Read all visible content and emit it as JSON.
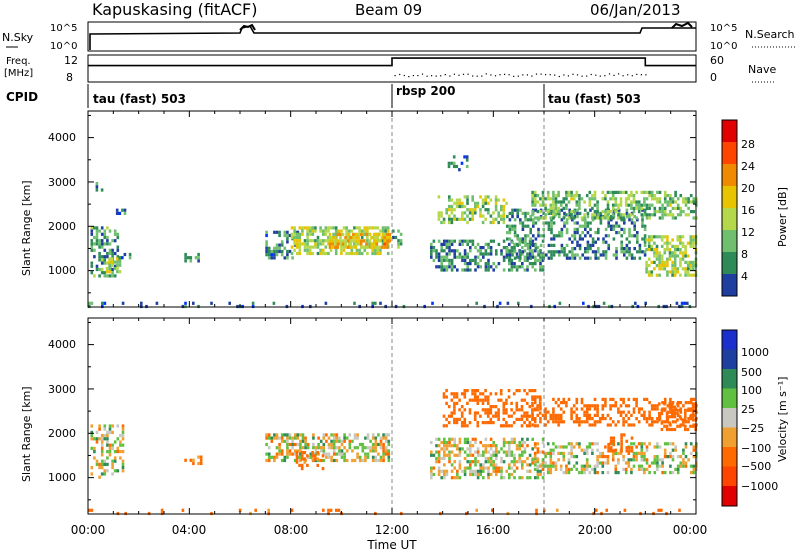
{
  "header": {
    "station": "Kapuskasing (fitACF)",
    "beam": "Beam 09",
    "date": "06/Jan/2013"
  },
  "strip": {
    "nsky_label": "N.Sky",
    "nsky_ticks": [
      "10^5",
      "10^0"
    ],
    "nsearch_label": "N.Search",
    "nsearch_ticks": [
      "10^5",
      "10^0"
    ],
    "freq_label_1": "Freq.",
    "freq_label_2": "[MHz]",
    "freq_ticks": [
      "12",
      "8"
    ],
    "nave_label": "Nave",
    "nave_ticks": [
      "60",
      "0"
    ],
    "cpid_label": "CPID"
  },
  "cpid_segments": [
    {
      "label": "tau (fast) 503",
      "start_h": 0
    },
    {
      "label": "rbsp 200",
      "start_h": 12
    },
    {
      "label": "tau (fast) 503",
      "start_h": 18
    }
  ],
  "x_axis": {
    "label": "Time UT",
    "ticks": [
      "00:00",
      "04:00",
      "08:00",
      "12:00",
      "16:00",
      "20:00",
      "00:00"
    ]
  },
  "power_panel": {
    "ylabel": "Slant Range [km]",
    "yticks": [
      "4000",
      "3000",
      "2000",
      "1000"
    ],
    "cbar_label": "Power [dB]",
    "cbar_ticks": [
      "28",
      "24",
      "20",
      "16",
      "12",
      "8",
      "4"
    ]
  },
  "velocity_panel": {
    "ylabel": "Slant Range [km]",
    "yticks": [
      "4000",
      "3000",
      "2000",
      "1000"
    ],
    "cbar_label": "Velocity [m s⁻¹]",
    "cbar_ticks": [
      "1000",
      "500",
      "100",
      "25",
      "−25",
      "−100",
      "−500",
      "−1000"
    ]
  },
  "chart_data": {
    "type": "heatmap",
    "x_range_hours": [
      0,
      24
    ],
    "y_range_km": [
      180,
      4600
    ],
    "power_colorscale": [
      "#0033ff",
      "#1f3fa0",
      "#2e8b57",
      "#6fbf6f",
      "#b5d84a",
      "#e8c400",
      "#f08a00",
      "#ff4500",
      "#e00000"
    ],
    "power_db_range": [
      0,
      32
    ],
    "velocity_colorscale": [
      "#e00000",
      "#ff6a00",
      "#f0a030",
      "#c8c8c0",
      "#c8c8c0",
      "#60c040",
      "#2e8b57",
      "#1f3fa0",
      "#1a2fcc"
    ],
    "velocity_range": [
      -1000,
      1000
    ],
    "freq_mhz": [
      {
        "t0": 0,
        "t1": 12,
        "value": 10.5
      },
      {
        "t0": 12,
        "t1": 22,
        "value": 11.8
      },
      {
        "t0": 22,
        "t1": 24,
        "value": 10.5
      }
    ],
    "power_echo_regions": [
      {
        "t0": 0.1,
        "t1": 1.2,
        "r0": 900,
        "r1": 2000,
        "db": 10,
        "density": 0.55
      },
      {
        "t0": 0.7,
        "t1": 1.3,
        "r0": 1000,
        "r1": 1300,
        "db": 16,
        "density": 0.7
      },
      {
        "t0": 1.2,
        "t1": 1.7,
        "r0": 1300,
        "r1": 1400,
        "db": 8,
        "density": 0.6
      },
      {
        "t0": 1.1,
        "t1": 1.5,
        "r0": 2200,
        "r1": 2400,
        "db": 8,
        "density": 0.4
      },
      {
        "t0": 0.3,
        "t1": 0.7,
        "r0": 2800,
        "r1": 3000,
        "db": 8,
        "density": 0.4
      },
      {
        "t0": 3.8,
        "t1": 4.4,
        "r0": 1200,
        "r1": 1400,
        "db": 10,
        "density": 0.55
      },
      {
        "t0": 7.0,
        "t1": 8.3,
        "r0": 1300,
        "r1": 1900,
        "db": 8,
        "density": 0.45
      },
      {
        "t0": 8.0,
        "t1": 11.9,
        "r0": 1400,
        "r1": 2000,
        "db": 15,
        "density": 0.6
      },
      {
        "t0": 9.5,
        "t1": 11.9,
        "r0": 1550,
        "r1": 1850,
        "db": 20,
        "density": 0.7
      },
      {
        "t0": 12.0,
        "t1": 12.4,
        "r0": 1500,
        "r1": 2000,
        "db": 10,
        "density": 0.5
      },
      {
        "t0": 13.5,
        "t1": 18.0,
        "r0": 1000,
        "r1": 1700,
        "db": 9,
        "density": 0.5
      },
      {
        "t0": 13.8,
        "t1": 16.5,
        "r0": 2100,
        "r1": 2700,
        "db": 14,
        "density": 0.5
      },
      {
        "t0": 16.5,
        "t1": 22.0,
        "r0": 1300,
        "r1": 2400,
        "db": 9,
        "density": 0.45
      },
      {
        "t0": 17.5,
        "t1": 24.0,
        "r0": 2200,
        "r1": 2800,
        "db": 13,
        "density": 0.5
      },
      {
        "t0": 22.0,
        "t1": 24.0,
        "r0": 900,
        "r1": 1800,
        "db": 15,
        "density": 0.6
      },
      {
        "t0": 14.2,
        "t1": 15.0,
        "r0": 3300,
        "r1": 3600,
        "db": 8,
        "density": 0.35
      },
      {
        "t0": 0.0,
        "t1": 24.0,
        "r0": 200,
        "r1": 300,
        "db": 6,
        "density": 0.12
      }
    ],
    "velocity_echo_regions": [
      {
        "t0": 0.1,
        "t1": 1.4,
        "r0": 1000,
        "r1": 2200,
        "v": 0,
        "density": 0.45
      },
      {
        "t0": 3.8,
        "t1": 4.5,
        "r0": 1300,
        "r1": 1500,
        "v": -150,
        "density": 0.5
      },
      {
        "t0": 7.0,
        "t1": 11.9,
        "r0": 1400,
        "r1": 2000,
        "v": 0,
        "density": 0.55
      },
      {
        "t0": 8.2,
        "t1": 9.3,
        "r0": 1200,
        "r1": 1600,
        "v": -150,
        "density": 0.35
      },
      {
        "t0": 13.5,
        "t1": 18.0,
        "r0": 1000,
        "r1": 1900,
        "v": 0,
        "density": 0.5
      },
      {
        "t0": 14.0,
        "t1": 17.8,
        "r0": 2200,
        "r1": 3000,
        "v": -300,
        "density": 0.45
      },
      {
        "t0": 17.5,
        "t1": 24.0,
        "r0": 2200,
        "r1": 2800,
        "v": -250,
        "density": 0.4
      },
      {
        "t0": 17.5,
        "t1": 24.0,
        "r0": 1100,
        "r1": 1800,
        "v": 0,
        "density": 0.45
      },
      {
        "t0": 20.5,
        "t1": 21.5,
        "r0": 1600,
        "r1": 2000,
        "v": -250,
        "density": 0.35
      },
      {
        "t0": 22.5,
        "t1": 24.0,
        "r0": 2100,
        "r1": 2700,
        "v": -300,
        "density": 0.45
      },
      {
        "t0": 0.0,
        "t1": 24.0,
        "r0": 200,
        "r1": 300,
        "v": -200,
        "density": 0.1
      }
    ]
  }
}
